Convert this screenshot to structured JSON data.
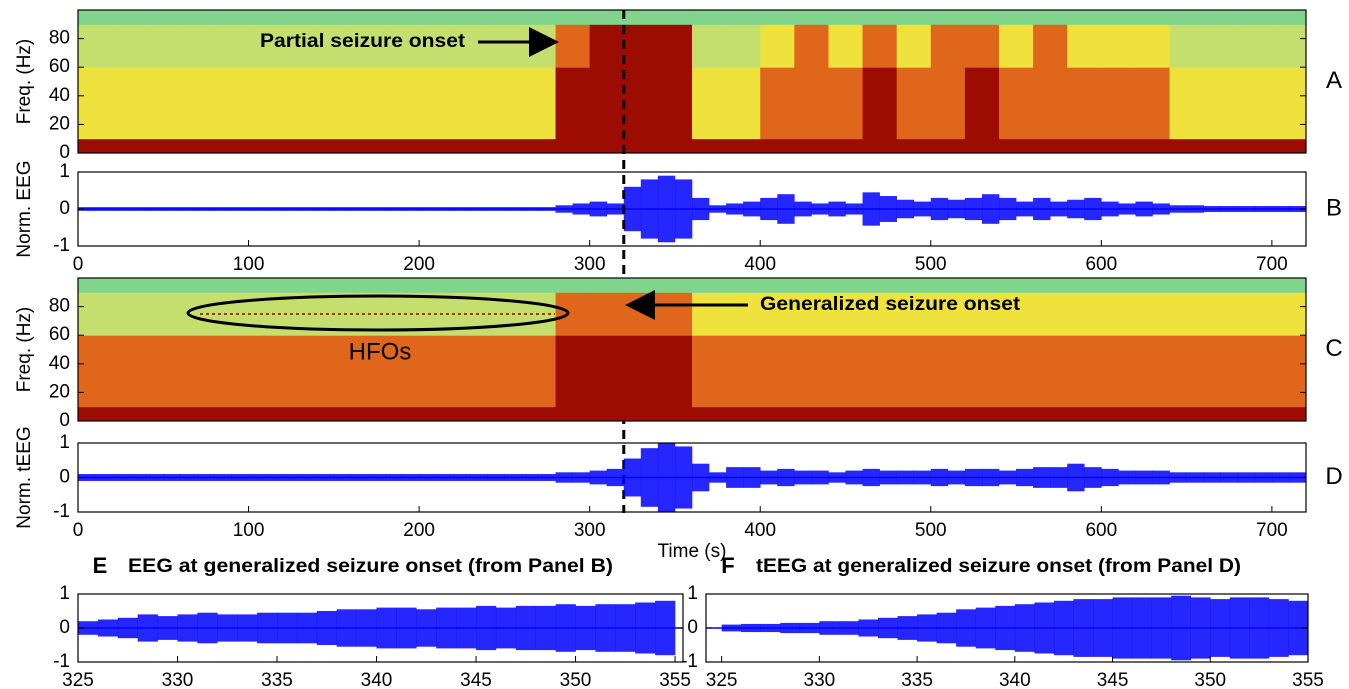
{
  "chart_data": [
    {
      "type": "spectrogram",
      "panel": "A",
      "ylabel": "Freq. (Hz)",
      "annotation": "Partial seizure onset",
      "xlim": [
        0,
        720
      ],
      "ylim": [
        0,
        100
      ],
      "yticks": [
        0,
        20,
        40,
        60,
        80
      ],
      "bins": [
        0,
        20,
        40,
        60,
        80,
        100,
        120,
        140,
        160,
        180,
        200,
        220,
        240,
        260,
        280,
        300,
        320,
        340,
        360,
        380,
        400,
        420,
        440,
        460,
        480,
        500,
        520,
        540,
        560,
        580,
        600,
        620,
        640,
        660,
        680,
        700,
        720
      ],
      "ybins": [
        0,
        10,
        60,
        90,
        100
      ],
      "colorscale": [
        "#80d48c",
        "#c4df6e",
        "#f0e23c",
        "#e0661c",
        "#9c0c00"
      ],
      "levels": [
        [
          4,
          4,
          4,
          4,
          4,
          4,
          4,
          4,
          4,
          4,
          4,
          4,
          4,
          4,
          4,
          4,
          4,
          4,
          4,
          4,
          4,
          4,
          4,
          4,
          4,
          4,
          4,
          4,
          4,
          4,
          4,
          4,
          4,
          4,
          4,
          4
        ],
        [
          2,
          2,
          2,
          2,
          2,
          2,
          2,
          2,
          2,
          2,
          2,
          2,
          2,
          2,
          4,
          4,
          4,
          4,
          2,
          2,
          3,
          3,
          3,
          4,
          3,
          3,
          4,
          3,
          3,
          3,
          3,
          3,
          2,
          2,
          2,
          2
        ],
        [
          1,
          1,
          1,
          1,
          1,
          1,
          1,
          1,
          1,
          1,
          1,
          1,
          1,
          1,
          3,
          4,
          4,
          4,
          1,
          1,
          2,
          3,
          2,
          3,
          2,
          3,
          3,
          2,
          3,
          2,
          2,
          2,
          1,
          1,
          1,
          1
        ],
        [
          0,
          0,
          0,
          0,
          0,
          0,
          0,
          0,
          0,
          0,
          0,
          0,
          0,
          0,
          0,
          0,
          0,
          0,
          0,
          0,
          0,
          0,
          0,
          0,
          0,
          0,
          0,
          0,
          0,
          0,
          0,
          0,
          0,
          0,
          0,
          0
        ]
      ]
    },
    {
      "type": "envelope",
      "panel": "B",
      "ylabel": "Norm. EEG",
      "color": "#0000ff",
      "generalized_onset": 320,
      "xlim": [
        0,
        720
      ],
      "xticks": [
        0,
        100,
        200,
        300,
        400,
        500,
        600,
        700
      ],
      "ylim": [
        -1,
        1
      ],
      "yticks": [
        -1,
        0,
        1
      ],
      "x": [
        5,
        15,
        25,
        35,
        45,
        55,
        65,
        75,
        85,
        95,
        105,
        115,
        125,
        135,
        145,
        155,
        165,
        175,
        185,
        195,
        205,
        215,
        225,
        235,
        245,
        255,
        265,
        275,
        285,
        295,
        305,
        315,
        325,
        335,
        345,
        355,
        365,
        375,
        385,
        395,
        405,
        415,
        425,
        435,
        445,
        455,
        465,
        475,
        485,
        495,
        505,
        515,
        525,
        535,
        545,
        555,
        565,
        575,
        585,
        595,
        605,
        615,
        625,
        635,
        645,
        655,
        665,
        675,
        685,
        695,
        705,
        715
      ],
      "values": [
        0.05,
        0.05,
        0.05,
        0.05,
        0.05,
        0.05,
        0.05,
        0.05,
        0.05,
        0.05,
        0.05,
        0.05,
        0.05,
        0.05,
        0.05,
        0.05,
        0.05,
        0.05,
        0.05,
        0.05,
        0.05,
        0.05,
        0.05,
        0.05,
        0.05,
        0.05,
        0.05,
        0.05,
        0.1,
        0.15,
        0.2,
        0.15,
        0.6,
        0.8,
        0.9,
        0.8,
        0.3,
        0.1,
        0.15,
        0.2,
        0.3,
        0.4,
        0.2,
        0.15,
        0.2,
        0.15,
        0.45,
        0.35,
        0.25,
        0.2,
        0.3,
        0.25,
        0.3,
        0.4,
        0.3,
        0.2,
        0.3,
        0.2,
        0.25,
        0.3,
        0.2,
        0.15,
        0.2,
        0.15,
        0.1,
        0.1,
        0.08,
        0.08,
        0.08,
        0.08,
        0.08,
        0.08
      ]
    },
    {
      "type": "spectrogram",
      "panel": "C",
      "ylabel": "Freq. (Hz)",
      "annotations": [
        "HFOs",
        "Generalized seizure onset"
      ],
      "xlim": [
        0,
        720
      ],
      "ylim": [
        0,
        100
      ],
      "yticks": [
        0,
        20,
        40,
        60,
        80
      ],
      "bins": [
        0,
        20,
        40,
        60,
        80,
        100,
        120,
        140,
        160,
        180,
        200,
        220,
        240,
        260,
        280,
        300,
        320,
        340,
        360,
        380,
        400,
        420,
        440,
        460,
        480,
        500,
        520,
        540,
        560,
        580,
        600,
        620,
        640,
        660,
        680,
        700,
        720
      ],
      "ybins": [
        0,
        10,
        60,
        90,
        100
      ],
      "colorscale": [
        "#80d48c",
        "#c4df6e",
        "#f0e23c",
        "#e0661c",
        "#9c0c00"
      ],
      "levels": [
        [
          4,
          4,
          4,
          4,
          4,
          4,
          4,
          4,
          4,
          4,
          4,
          4,
          4,
          4,
          4,
          4,
          4,
          4,
          4,
          4,
          4,
          4,
          4,
          4,
          4,
          4,
          4,
          4,
          4,
          4,
          4,
          4,
          4,
          4,
          4,
          4
        ],
        [
          3,
          3,
          3,
          3,
          3,
          3,
          3,
          3,
          3,
          3,
          3,
          3,
          3,
          3,
          4,
          4,
          4,
          4,
          3,
          3,
          3,
          3,
          3,
          3,
          3,
          3,
          3,
          3,
          3,
          3,
          3,
          3,
          3,
          3,
          3,
          3
        ],
        [
          1,
          1,
          1,
          1,
          1,
          1,
          1,
          1,
          1,
          1,
          1,
          1,
          1,
          1,
          3,
          3,
          3,
          3,
          2,
          2,
          2,
          2,
          2,
          2,
          2,
          2,
          2,
          2,
          2,
          2,
          2,
          2,
          2,
          2,
          2,
          2
        ],
        [
          0,
          0,
          0,
          0,
          0,
          0,
          0,
          0,
          0,
          0,
          0,
          0,
          0,
          0,
          0,
          0,
          0,
          0,
          0,
          0,
          0,
          0,
          0,
          0,
          0,
          0,
          0,
          0,
          0,
          0,
          0,
          0,
          0,
          0,
          0,
          0
        ]
      ]
    },
    {
      "type": "envelope",
      "panel": "D",
      "ylabel": "Norm. tEEG",
      "xlabel": "Time (s)",
      "color": "#0000ff",
      "xlim": [
        0,
        720
      ],
      "xticks": [
        0,
        100,
        200,
        300,
        400,
        500,
        600,
        700
      ],
      "ylim": [
        -1,
        1
      ],
      "yticks": [
        -1,
        0,
        1
      ],
      "x": [
        5,
        15,
        25,
        35,
        45,
        55,
        65,
        75,
        85,
        95,
        105,
        115,
        125,
        135,
        145,
        155,
        165,
        175,
        185,
        195,
        205,
        215,
        225,
        235,
        245,
        255,
        265,
        275,
        285,
        295,
        305,
        315,
        325,
        335,
        345,
        355,
        365,
        375,
        385,
        395,
        405,
        415,
        425,
        435,
        445,
        455,
        465,
        475,
        485,
        495,
        505,
        515,
        525,
        535,
        545,
        555,
        565,
        575,
        585,
        595,
        605,
        615,
        625,
        635,
        645,
        655,
        665,
        675,
        685,
        695,
        705,
        715
      ],
      "values": [
        0.1,
        0.1,
        0.1,
        0.1,
        0.1,
        0.1,
        0.1,
        0.1,
        0.1,
        0.1,
        0.1,
        0.1,
        0.1,
        0.1,
        0.1,
        0.1,
        0.1,
        0.1,
        0.1,
        0.1,
        0.1,
        0.1,
        0.1,
        0.1,
        0.1,
        0.1,
        0.1,
        0.1,
        0.15,
        0.15,
        0.2,
        0.25,
        0.55,
        0.85,
        1,
        0.9,
        0.4,
        0.15,
        0.3,
        0.3,
        0.2,
        0.25,
        0.2,
        0.2,
        0.15,
        0.2,
        0.25,
        0.2,
        0.2,
        0.2,
        0.25,
        0.2,
        0.25,
        0.25,
        0.2,
        0.25,
        0.3,
        0.3,
        0.4,
        0.3,
        0.25,
        0.2,
        0.2,
        0.2,
        0.15,
        0.15,
        0.15,
        0.15,
        0.15,
        0.15,
        0.15,
        0.15
      ]
    },
    {
      "type": "envelope",
      "panel": "E",
      "title": "EEG at generalized seizure onset (from Panel B)",
      "color": "#0000ff",
      "xlim": [
        325,
        355.4
      ],
      "xticks": [
        325,
        330,
        335,
        340,
        345,
        350,
        355
      ],
      "ylim": [
        -1,
        1
      ],
      "yticks": [
        -1,
        0,
        1
      ],
      "x": [
        325.5,
        326.5,
        327.5,
        328.5,
        329.5,
        330.5,
        331.5,
        332.5,
        333.5,
        334.5,
        335.5,
        336.5,
        337.5,
        338.5,
        339.5,
        340.5,
        341.5,
        342.5,
        343.5,
        344.5,
        345.5,
        346.5,
        347.5,
        348.5,
        349.5,
        350.5,
        351.5,
        352.5,
        353.5,
        354.5
      ],
      "values": [
        0.2,
        0.25,
        0.3,
        0.4,
        0.35,
        0.4,
        0.45,
        0.4,
        0.4,
        0.45,
        0.45,
        0.45,
        0.5,
        0.55,
        0.55,
        0.6,
        0.6,
        0.55,
        0.6,
        0.6,
        0.65,
        0.6,
        0.65,
        0.65,
        0.7,
        0.65,
        0.7,
        0.7,
        0.75,
        0.8
      ]
    },
    {
      "type": "envelope",
      "panel": "F",
      "title": "tEEG at generalized seizure onset (from Panel D)",
      "color": "#0000ff",
      "xlim": [
        324.2,
        355
      ],
      "xticks": [
        325,
        330,
        335,
        340,
        345,
        350,
        355
      ],
      "ylim": [
        -1,
        1
      ],
      "yticks": [
        -1,
        0,
        1
      ],
      "x": [
        325.5,
        326.5,
        327.5,
        328.5,
        329.5,
        330.5,
        331.5,
        332.5,
        333.5,
        334.5,
        335.5,
        336.5,
        337.5,
        338.5,
        339.5,
        340.5,
        341.5,
        342.5,
        343.5,
        344.5,
        345.5,
        346.5,
        347.5,
        348.5,
        349.5,
        350.5,
        351.5,
        352.5,
        353.5,
        354.5
      ],
      "values": [
        0.1,
        0.12,
        0.12,
        0.15,
        0.15,
        0.2,
        0.2,
        0.25,
        0.3,
        0.35,
        0.4,
        0.45,
        0.55,
        0.6,
        0.65,
        0.7,
        0.75,
        0.8,
        0.85,
        0.85,
        0.9,
        0.9,
        0.9,
        0.95,
        0.9,
        0.85,
        0.9,
        0.9,
        0.85,
        0.8
      ]
    }
  ]
}
